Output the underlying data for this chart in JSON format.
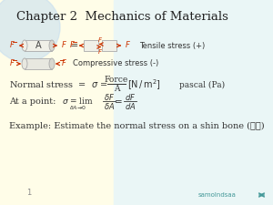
{
  "title": "Chapter 2  Mechanics of Materials",
  "bg_left_color": "#ffffee",
  "bg_right_color": "#e8f5f5",
  "bg_blue_circle": "#d0e8f0",
  "title_color": "#222222",
  "text_color": "#333333",
  "red_color": "#cc3300",
  "teal_color": "#449999",
  "tensile_label": "Tensile stress (+)",
  "compressive_label": "Compressive stress (-)",
  "example_line": "Example: Estimate the normal stress on a shin bone (胫骨)",
  "page_num": "1",
  "link_text": "samolndsaa"
}
